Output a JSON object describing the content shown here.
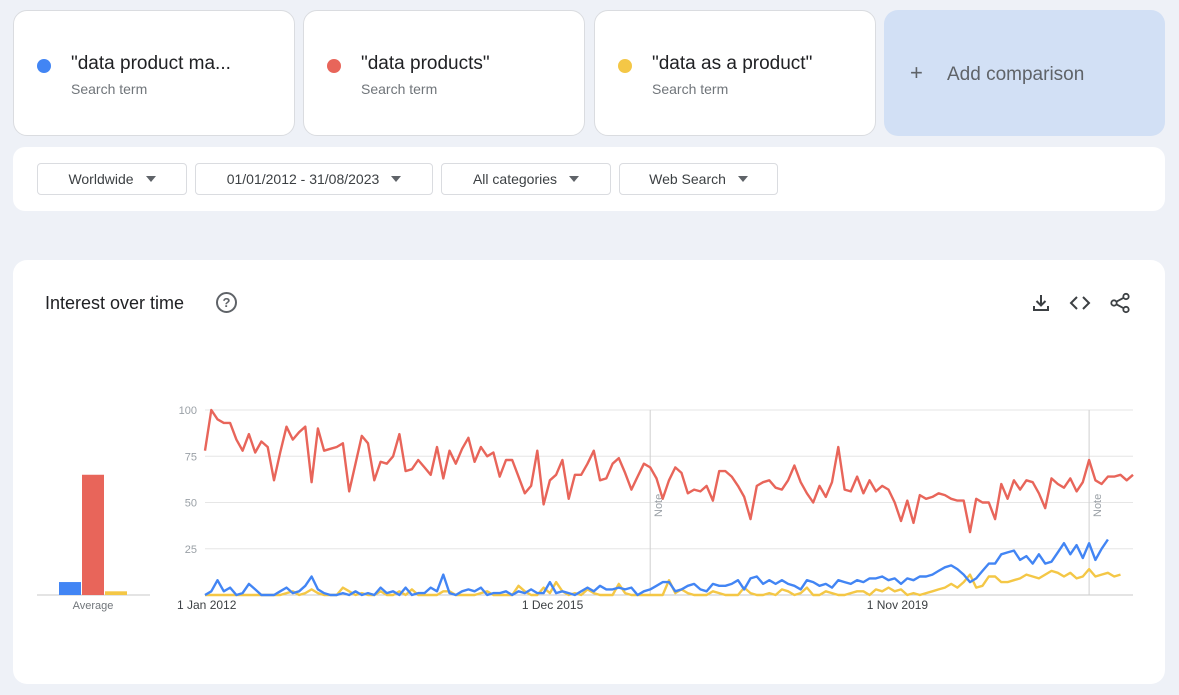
{
  "search_terms": [
    {
      "label": "\"data product ma...",
      "sublabel": "Search term",
      "color": "#4285f4"
    },
    {
      "label": "\"data products\"",
      "sublabel": "Search term",
      "color": "#e8655a"
    },
    {
      "label": "\"data as a product\"",
      "sublabel": "Search term",
      "color": "#f4c746"
    }
  ],
  "add_comparison": "Add comparison",
  "filters": {
    "region": "Worldwide",
    "date_range": "01/01/2012 - 31/08/2023",
    "category": "All categories",
    "search_type": "Web Search"
  },
  "panel": {
    "title": "Interest over time",
    "help_icon": "question-circle-icon",
    "tools": [
      "download-icon",
      "embed-code-icon",
      "share-icon"
    ]
  },
  "chart_data": {
    "type": "line",
    "ylim": [
      0,
      100
    ],
    "yticks": [
      25,
      50,
      75,
      100
    ],
    "x_tick_labels": [
      "1 Jan 2012",
      "1 Dec 2015",
      "1 Nov 2019"
    ],
    "notes": [
      "Note",
      "Note"
    ],
    "average_label": "Average",
    "averages": [
      {
        "name": "\"data product management\"",
        "value": 7,
        "color": "#4285f4"
      },
      {
        "name": "\"data products\"",
        "value": 65,
        "color": "#e8655a"
      },
      {
        "name": "\"data as a product\"",
        "value": 2,
        "color": "#f4c746"
      }
    ],
    "series": [
      {
        "name": "\"data products\"",
        "color": "#e8655a",
        "values": [
          78,
          100,
          95,
          93,
          93,
          84,
          78,
          87,
          77,
          83,
          80,
          62,
          77,
          91,
          84,
          88,
          91,
          61,
          90,
          78,
          79,
          80,
          82,
          56,
          71,
          86,
          82,
          62,
          72,
          71,
          75,
          87,
          67,
          68,
          73,
          69,
          65,
          80,
          63,
          78,
          71,
          79,
          85,
          72,
          80,
          75,
          77,
          64,
          73,
          73,
          64,
          55,
          59,
          78,
          49,
          62,
          65,
          73,
          52,
          65,
          65,
          71,
          78,
          62,
          63,
          71,
          74,
          66,
          57,
          64,
          71,
          69,
          63,
          52,
          62,
          69,
          66,
          55,
          57,
          56,
          59,
          51,
          67,
          67,
          64,
          59,
          53,
          41,
          59,
          61,
          62,
          58,
          57,
          62,
          70,
          61,
          55,
          50,
          59,
          53,
          61,
          80,
          57,
          56,
          64,
          55,
          62,
          56,
          59,
          57,
          50,
          40,
          51,
          39,
          54,
          52,
          53,
          55,
          54,
          52,
          51,
          51,
          34,
          52,
          50,
          50,
          41,
          60,
          52,
          62,
          57,
          62,
          61,
          55,
          47,
          63,
          60,
          58,
          63,
          56,
          61,
          73,
          62,
          60,
          64,
          64,
          65,
          62,
          65
        ]
      },
      {
        "name": "\"data product management\"",
        "color": "#4285f4",
        "values": [
          0,
          2,
          8,
          2,
          4,
          0,
          1,
          6,
          3,
          0,
          0,
          0,
          2,
          4,
          1,
          2,
          5,
          10,
          3,
          1,
          0,
          0,
          1,
          0,
          2,
          0,
          1,
          0,
          4,
          1,
          2,
          0,
          4,
          0,
          1,
          1,
          4,
          2,
          11,
          1,
          0,
          2,
          3,
          2,
          4,
          0,
          1,
          1,
          2,
          0,
          2,
          1,
          3,
          1,
          1,
          7,
          1,
          2,
          1,
          0,
          2,
          4,
          2,
          5,
          3,
          3,
          4,
          3,
          4,
          0,
          2,
          3,
          5,
          7,
          7,
          2,
          3,
          5,
          6,
          3,
          2,
          6,
          5,
          5,
          6,
          8,
          3,
          9,
          10,
          6,
          8,
          6,
          8,
          6,
          5,
          3,
          8,
          7,
          5,
          6,
          4,
          8,
          7,
          6,
          8,
          7,
          9,
          9,
          10,
          8,
          9,
          6,
          9,
          8,
          10,
          10,
          11,
          13,
          15,
          16,
          14,
          11,
          7,
          9,
          13,
          17,
          17,
          22,
          23,
          24,
          19,
          21,
          17,
          22,
          17,
          18,
          23,
          28,
          22,
          27,
          20,
          28,
          19,
          25,
          30
        ]
      },
      {
        "name": "\"data as a product\"",
        "color": "#f4c746",
        "values": [
          0,
          0,
          0,
          0,
          0,
          0,
          0,
          0,
          0,
          0,
          0,
          0,
          0,
          1,
          2,
          0,
          1,
          3,
          1,
          0,
          0,
          0,
          4,
          2,
          0,
          1,
          0,
          0,
          2,
          0,
          0,
          2,
          0,
          3,
          0,
          0,
          0,
          0,
          2,
          2,
          0,
          0,
          0,
          0,
          1,
          2,
          0,
          0,
          0,
          0,
          5,
          2,
          0,
          0,
          4,
          1,
          7,
          2,
          0,
          1,
          0,
          3,
          1,
          0,
          0,
          0,
          6,
          1,
          0,
          0,
          0,
          0,
          0,
          0,
          8,
          1,
          3,
          1,
          0,
          0,
          0,
          2,
          1,
          0,
          0,
          0,
          4,
          1,
          0,
          0,
          1,
          0,
          3,
          2,
          0,
          1,
          4,
          0,
          0,
          2,
          1,
          0,
          0,
          1,
          2,
          2,
          0,
          3,
          2,
          4,
          2,
          3,
          0,
          1,
          0,
          1,
          2,
          3,
          4,
          6,
          4,
          7,
          11,
          4,
          5,
          10,
          10,
          7,
          7,
          8,
          9,
          11,
          10,
          9,
          11,
          13,
          12,
          10,
          12,
          9,
          10,
          14,
          10,
          11,
          12,
          10,
          11
        ]
      }
    ]
  }
}
